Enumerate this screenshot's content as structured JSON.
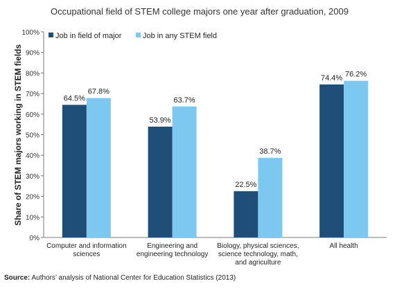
{
  "chart_data": {
    "type": "bar",
    "title": "Occupational field of STEM college majors one year after graduation, 2009",
    "ylabel": "Share of STEM majors working in STEM fields",
    "xlabel": "",
    "categories": [
      [
        "Computer and information",
        "sciences"
      ],
      [
        "Engineering and",
        "engineering technology"
      ],
      [
        "Biology, physical sciences,",
        "science technology, math,",
        "and agriculture"
      ],
      [
        "All health"
      ]
    ],
    "series": [
      {
        "name": "Job in field of major",
        "values": [
          64.5,
          53.9,
          22.5,
          74.4
        ],
        "labels": [
          "64.5%",
          "53.9%",
          "22.5%",
          "74.4%"
        ],
        "color": "#1f4e79"
      },
      {
        "name": "Job in any STEM field",
        "values": [
          67.8,
          63.7,
          38.7,
          76.2
        ],
        "labels": [
          "67.8%",
          "63.7%",
          "38.7%",
          "76.2%"
        ],
        "color": "#7cc8f0"
      }
    ],
    "ylim": [
      0,
      100
    ],
    "yticks": [
      0,
      10,
      20,
      30,
      40,
      50,
      60,
      70,
      80,
      90,
      100
    ],
    "ytick_labels": [
      "0%",
      "10%",
      "20%",
      "30%",
      "40%",
      "50%",
      "60%",
      "70%",
      "80%",
      "90%",
      "100%"
    ],
    "grid": false,
    "legend_position": "top-left"
  },
  "source": {
    "label": "Source:",
    "text": " Authors’ analysis of National Center for Education Statistics (2013)"
  }
}
